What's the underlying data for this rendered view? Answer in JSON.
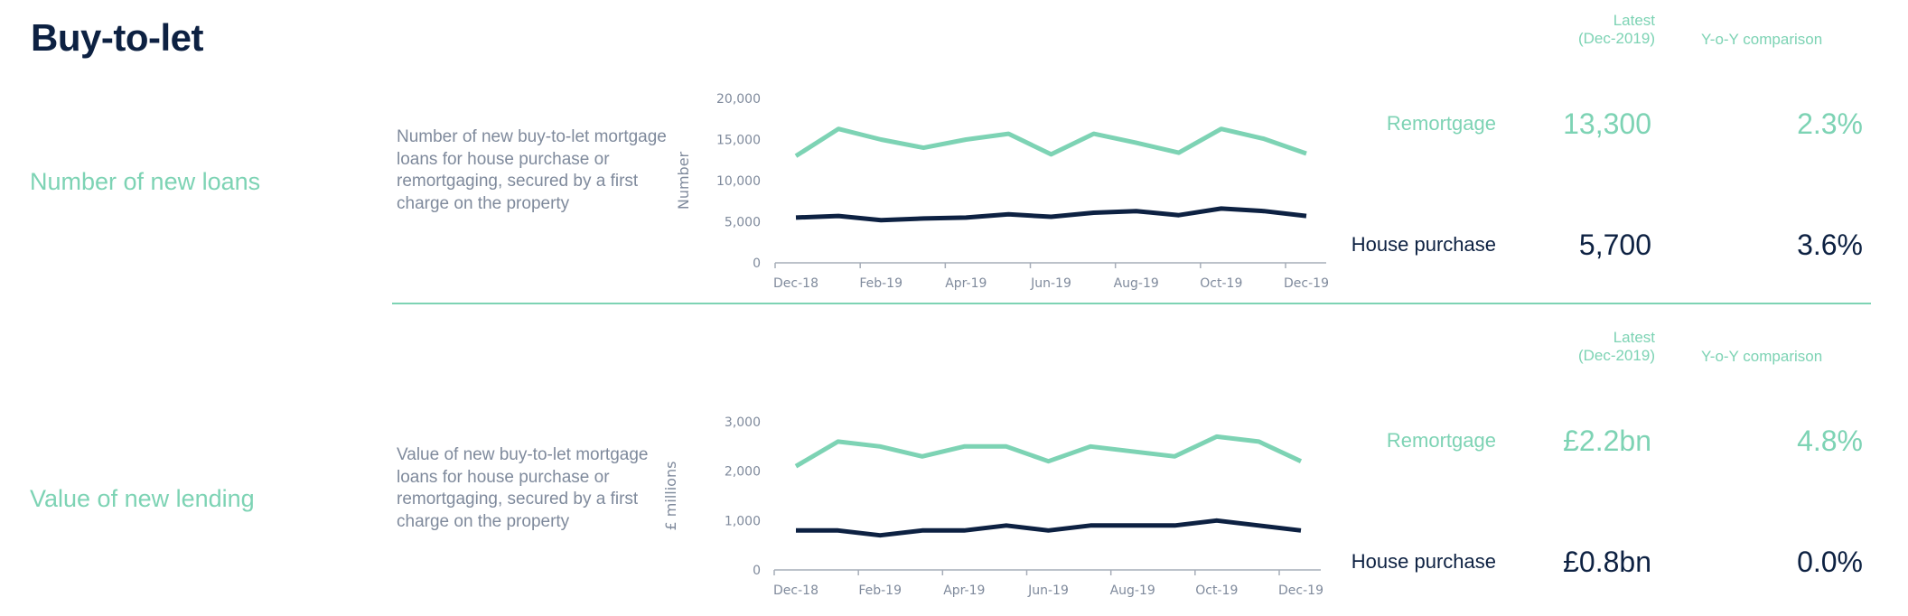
{
  "page": {
    "title": "Buy-to-let"
  },
  "sections": [
    {
      "label": "Number of new loans",
      "description": "Number of new buy-to-let mortgage loans for house purchase or remortgaging, secured by a first charge on the property",
      "header_latest_line1": "Latest",
      "header_latest_line2": "(Dec-2019)",
      "header_yoy": "Y-o-Y comparison",
      "rows": [
        {
          "label": "Remortgage",
          "latest": "13,300",
          "yoy": "2.3%"
        },
        {
          "label": "House purchase",
          "latest": "5,700",
          "yoy": "3.6%"
        }
      ]
    },
    {
      "label": "Value of new lending",
      "description": "Value of new buy-to-let mortgage loans for house purchase or remortgaging, secured by a first charge on the property",
      "header_latest_line1": "Latest",
      "header_latest_line2": "(Dec-2019)",
      "header_yoy": "Y-o-Y comparison",
      "rows": [
        {
          "label": "Remortgage",
          "latest": "£2.2bn",
          "yoy": "4.8%"
        },
        {
          "label": "House purchase",
          "latest": "£0.8bn",
          "yoy": "0.0%"
        }
      ]
    }
  ],
  "colors": {
    "remortgage": "#7dd3b4",
    "house_purchase": "#0d2142",
    "axis": "#a6adb8",
    "tick_text": "#7f8a9c"
  },
  "chart_data": [
    {
      "type": "line",
      "title": "",
      "xlabel": "",
      "ylabel": "Number",
      "ylim": [
        0,
        20000
      ],
      "yticks": [
        0,
        5000,
        10000,
        15000,
        20000
      ],
      "ytick_labels": [
        "0",
        "5,000",
        "10,000",
        "15,000",
        "20,000"
      ],
      "x": [
        "Dec-18",
        "Jan-19",
        "Feb-19",
        "Mar-19",
        "Apr-19",
        "May-19",
        "Jun-19",
        "Jul-19",
        "Aug-19",
        "Sep-19",
        "Oct-19",
        "Nov-19",
        "Dec-19"
      ],
      "xtick_labels": [
        "Dec-18",
        "Feb-19",
        "Apr-19",
        "Jun-19",
        "Aug-19",
        "Oct-19",
        "Dec-19"
      ],
      "grid": false,
      "series": [
        {
          "name": "Remortgage",
          "values": [
            13000,
            16300,
            15000,
            14000,
            15000,
            15700,
            13200,
            15700,
            14600,
            13400,
            16300,
            15100,
            13300
          ]
        },
        {
          "name": "House purchase",
          "values": [
            5500,
            5700,
            5200,
            5400,
            5500,
            5900,
            5600,
            6100,
            6300,
            5800,
            6600,
            6300,
            5700
          ]
        }
      ]
    },
    {
      "type": "line",
      "title": "",
      "xlabel": "",
      "ylabel": "£ millions",
      "ylim": [
        0,
        3000
      ],
      "yticks": [
        0,
        1000,
        2000,
        3000
      ],
      "ytick_labels": [
        "0",
        "1,000",
        "2,000",
        "3,000"
      ],
      "x": [
        "Dec-18",
        "Jan-19",
        "Feb-19",
        "Mar-19",
        "Apr-19",
        "May-19",
        "Jun-19",
        "Jul-19",
        "Aug-19",
        "Sep-19",
        "Oct-19",
        "Nov-19",
        "Dec-19"
      ],
      "xtick_labels": [
        "Dec-18",
        "Feb-19",
        "Apr-19",
        "Jun-19",
        "Aug-19",
        "Oct-19",
        "Dec-19"
      ],
      "grid": false,
      "series": [
        {
          "name": "Remortgage",
          "values": [
            2100,
            2600,
            2500,
            2300,
            2500,
            2500,
            2200,
            2500,
            2400,
            2300,
            2700,
            2600,
            2200
          ]
        },
        {
          "name": "House purchase",
          "values": [
            800,
            800,
            700,
            800,
            800,
            900,
            800,
            900,
            900,
            900,
            1000,
            900,
            800
          ]
        }
      ]
    }
  ]
}
